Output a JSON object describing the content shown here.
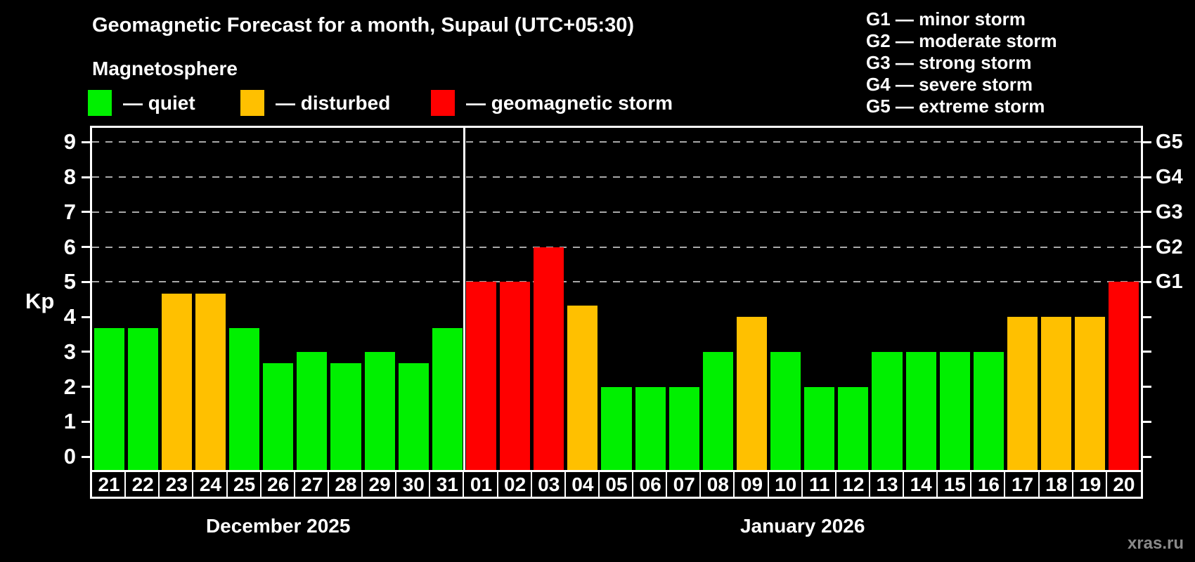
{
  "watermark": "xras.ru",
  "colors": {
    "background": "#000000",
    "quiet": "#00f000",
    "disturbed": "#ffc000",
    "storm": "#ff0000",
    "grid": "#a8a8a8",
    "text": "#ffffff",
    "watermark": "#8a8a8a"
  },
  "legend": {
    "items": [
      {
        "label": "— quiet",
        "status": "quiet"
      },
      {
        "label": "— disturbed",
        "status": "disturbed"
      },
      {
        "label": "— geomagnetic storm",
        "status": "storm"
      }
    ]
  },
  "g_legend": [
    "G1 — minor storm",
    "G2 — moderate storm",
    "G3 — strong storm",
    "G4 — severe storm",
    "G5 — extreme storm"
  ],
  "chart_data": {
    "type": "bar",
    "title": "Geomagnetic Forecast for a month, Supaul (UTC+05:30)",
    "subtitle": "Magnetosphere",
    "ylabel": "Kp",
    "ylim": [
      0,
      9
    ],
    "y_ticks": [
      0,
      1,
      2,
      3,
      4,
      5,
      6,
      7,
      8,
      9
    ],
    "gridlines": [
      5,
      6,
      7,
      8,
      9
    ],
    "grid": "dashed, only at storm levels 5-9",
    "legend_position": "top-left",
    "right_axis_labels": [
      {
        "value": 5,
        "label": "G1"
      },
      {
        "value": 6,
        "label": "G2"
      },
      {
        "value": 7,
        "label": "G3"
      },
      {
        "value": 8,
        "label": "G4"
      },
      {
        "value": 9,
        "label": "G5"
      }
    ],
    "categories": [
      "21",
      "22",
      "23",
      "24",
      "25",
      "26",
      "27",
      "28",
      "29",
      "30",
      "31",
      "01",
      "02",
      "03",
      "04",
      "05",
      "06",
      "07",
      "08",
      "09",
      "10",
      "11",
      "12",
      "13",
      "14",
      "15",
      "16",
      "17",
      "18",
      "19",
      "20"
    ],
    "values": [
      3.67,
      3.67,
      4.67,
      4.67,
      3.67,
      2.67,
      3,
      2.67,
      3,
      2.67,
      3.67,
      5,
      5,
      6,
      4.33,
      2,
      2,
      2,
      3,
      4,
      3,
      2,
      2,
      3,
      3,
      3,
      3,
      4,
      4,
      4,
      5
    ],
    "statuses": [
      "quiet",
      "quiet",
      "disturbed",
      "disturbed",
      "quiet",
      "quiet",
      "quiet",
      "quiet",
      "quiet",
      "quiet",
      "quiet",
      "storm",
      "storm",
      "storm",
      "disturbed",
      "quiet",
      "quiet",
      "quiet",
      "quiet",
      "disturbed",
      "quiet",
      "quiet",
      "quiet",
      "quiet",
      "quiet",
      "quiet",
      "quiet",
      "disturbed",
      "disturbed",
      "disturbed",
      "storm"
    ],
    "months": [
      {
        "label": "December 2025",
        "days": 11
      },
      {
        "label": "January 2026",
        "days": 20
      }
    ]
  }
}
